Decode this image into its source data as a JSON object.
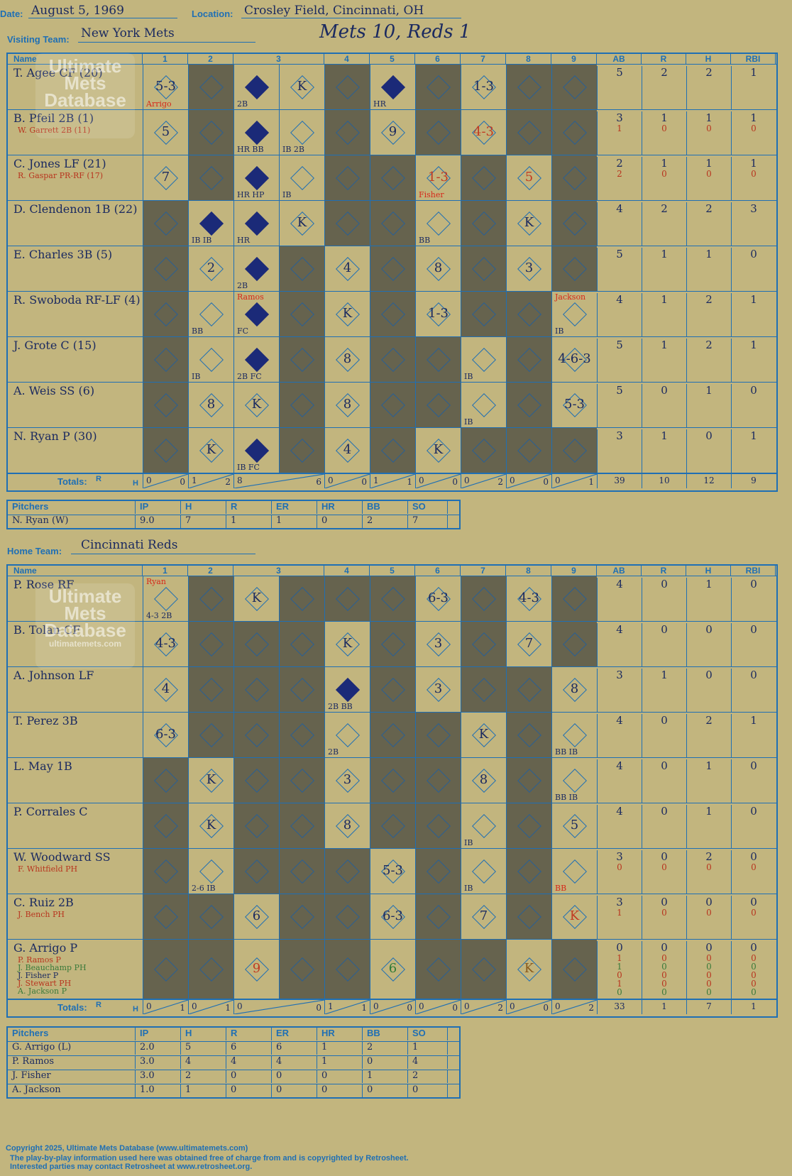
{
  "header": {
    "date_label": "Date:",
    "date": "August 5, 1969",
    "location_label": "Location:",
    "location": "Crosley Field, Cincinnati, OH",
    "visiting_label": "Visiting Team:",
    "visiting_team": "New York Mets",
    "home_label": "Home Team:",
    "home_team": "Cincinnati Reds",
    "result": "Mets 10, Reds 1"
  },
  "watermark": {
    "line1": "Ultimate",
    "line2": "Mets",
    "line3": "Database",
    "url": "ultimatemets.com"
  },
  "columns": {
    "name": "Name",
    "innings": [
      "1",
      "2",
      "3",
      "4",
      "5",
      "6",
      "7",
      "8",
      "9"
    ],
    "stats": [
      "AB",
      "R",
      "H",
      "RBI"
    ],
    "totals_label": "Totals:",
    "r_label": "R",
    "h_label": "H"
  },
  "visitors": {
    "batters": [
      {
        "name": "T. Agee CF (20)",
        "subs": [],
        "stats": [
          "5",
          "2",
          "2",
          "1"
        ],
        "sub_stats": [],
        "cells": [
          {
            "p": "5-3",
            "n": "Arrigo",
            "nc": "red"
          },
          {
            "d": 1
          },
          {
            "run": 1,
            "n": "2B"
          },
          {
            "p": "K"
          },
          {
            "d": 1
          },
          {
            "run": 1,
            "n": "HR"
          },
          {
            "d": 1
          },
          {
            "p": "1-3"
          },
          {
            "d": 1
          },
          {
            "d": 1
          }
        ]
      },
      {
        "name": "B. Pfeil 2B (1)",
        "subs": [
          {
            "t": "W. Garrett 2B (11)",
            "c": "r"
          }
        ],
        "stats": [
          "3",
          "1",
          "1",
          "1"
        ],
        "sub_stats": [
          [
            "1",
            "0",
            "0",
            "0"
          ]
        ],
        "cells": [
          {
            "p": "5"
          },
          {
            "d": 1
          },
          {
            "run": 1,
            "n": "HR BB"
          },
          {
            "p": "",
            "n": "IB 2B"
          },
          {
            "d": 1
          },
          {
            "p": "9"
          },
          {
            "d": 1
          },
          {
            "p": "4-3",
            "pc": "red"
          },
          {
            "d": 1
          },
          {
            "d": 1
          }
        ]
      },
      {
        "name": "C. Jones LF (21)",
        "subs": [
          {
            "t": "R. Gaspar PR-RF (17)",
            "c": "r"
          }
        ],
        "stats": [
          "2",
          "1",
          "1",
          "1"
        ],
        "sub_stats": [
          [
            "2",
            "0",
            "0",
            "0"
          ]
        ],
        "cells": [
          {
            "p": "7"
          },
          {
            "d": 1
          },
          {
            "run": 1,
            "n": "HR HP"
          },
          {
            "p": "",
            "n": "IB"
          },
          {
            "d": 1
          },
          {
            "d": 1
          },
          {
            "p": "1-3",
            "pc": "red",
            "n": "Fisher",
            "nc": "red"
          },
          {
            "d": 1
          },
          {
            "p": "5",
            "pc": "red"
          },
          {
            "d": 1
          }
        ]
      },
      {
        "name": "D. Clendenon 1B (22)",
        "subs": [],
        "stats": [
          "4",
          "2",
          "2",
          "3"
        ],
        "sub_stats": [],
        "cells": [
          {
            "d": 1
          },
          {
            "run": 1,
            "n": "IB IB"
          },
          {
            "run": 1,
            "n": "HR"
          },
          {
            "p": "K"
          },
          {
            "d": 1
          },
          {
            "d": 1
          },
          {
            "p": "",
            "n": "BB"
          },
          {
            "d": 1
          },
          {
            "p": "K"
          },
          {
            "d": 1
          }
        ]
      },
      {
        "name": "E. Charles 3B (5)",
        "subs": [],
        "stats": [
          "5",
          "1",
          "1",
          "0"
        ],
        "sub_stats": [],
        "cells": [
          {
            "d": 1
          },
          {
            "p": "2"
          },
          {
            "run": 1,
            "n": "2B"
          },
          {
            "d": 1
          },
          {
            "p": "4"
          },
          {
            "d": 1
          },
          {
            "p": "8"
          },
          {
            "d": 1
          },
          {
            "p": "3"
          },
          {
            "d": 1
          }
        ]
      },
      {
        "name": "R. Swoboda RF-LF (4)",
        "subs": [],
        "stats": [
          "4",
          "1",
          "2",
          "1"
        ],
        "sub_stats": [],
        "cells": [
          {
            "d": 1
          },
          {
            "p": "",
            "n": "BB"
          },
          {
            "run": 1,
            "n": "FC",
            "n2": "Ramos",
            "nc": "red"
          },
          {
            "d": 1
          },
          {
            "p": "K"
          },
          {
            "d": 1
          },
          {
            "p": "1-3"
          },
          {
            "d": 1
          },
          {
            "d": 1
          },
          {
            "p": "",
            "n": "IB",
            "n2": "Jackson",
            "nc": "red"
          }
        ]
      },
      {
        "name": "J. Grote C (15)",
        "subs": [],
        "stats": [
          "5",
          "1",
          "2",
          "1"
        ],
        "sub_stats": [],
        "cells": [
          {
            "d": 1
          },
          {
            "p": "",
            "n": "IB"
          },
          {
            "run": 1,
            "n": "2B FC"
          },
          {
            "d": 1
          },
          {
            "p": "8"
          },
          {
            "d": 1
          },
          {
            "d": 1
          },
          {
            "p": "",
            "n": "IB"
          },
          {
            "d": 1
          },
          {
            "p": "4-6-3"
          }
        ]
      },
      {
        "name": "A. Weis SS (6)",
        "subs": [],
        "stats": [
          "5",
          "0",
          "1",
          "0"
        ],
        "sub_stats": [],
        "cells": [
          {
            "d": 1
          },
          {
            "p": "8"
          },
          {
            "p": "K"
          },
          {
            "d": 1
          },
          {
            "p": "8"
          },
          {
            "d": 1
          },
          {
            "d": 1
          },
          {
            "p": "",
            "n": "IB"
          },
          {
            "d": 1
          },
          {
            "p": "5-3"
          }
        ]
      },
      {
        "name": "N. Ryan P (30)",
        "subs": [],
        "stats": [
          "3",
          "1",
          "0",
          "1"
        ],
        "sub_stats": [],
        "cells": [
          {
            "d": 1
          },
          {
            "p": "K"
          },
          {
            "run": 1,
            "n": "IB FC"
          },
          {
            "d": 1
          },
          {
            "p": "4"
          },
          {
            "d": 1
          },
          {
            "p": "K"
          },
          {
            "d": 1
          },
          {
            "d": 1
          },
          {
            "d": 1
          }
        ]
      }
    ],
    "totals": [
      [
        "0",
        "0"
      ],
      [
        "1",
        "2"
      ],
      [
        "8",
        "6"
      ],
      [
        "0",
        "0"
      ],
      [
        "1",
        "1"
      ],
      [
        "0",
        "0"
      ],
      [
        "0",
        "2"
      ],
      [
        "0",
        "0"
      ],
      [
        "0",
        "1"
      ]
    ],
    "totals_stats": [
      "39",
      "10",
      "12",
      "9"
    ]
  },
  "visitor_pitchers": {
    "headers": [
      "Pitchers",
      "IP",
      "H",
      "R",
      "ER",
      "HR",
      "BB",
      "SO"
    ],
    "rows": [
      [
        "N. Ryan (W)",
        "9.0",
        "7",
        "1",
        "1",
        "0",
        "2",
        "7"
      ]
    ]
  },
  "home": {
    "batters": [
      {
        "name": "P. Rose RF",
        "subs": [],
        "stats": [
          "4",
          "0",
          "1",
          "0"
        ],
        "sub_stats": [],
        "cells": [
          {
            "p": "",
            "n": "4-3 2B",
            "n2": "Ryan",
            "nc": "red"
          },
          {
            "d": 1
          },
          {
            "p": "K"
          },
          {
            "d": 1
          },
          {
            "d": 1
          },
          {
            "d": 1
          },
          {
            "p": "6-3"
          },
          {
            "d": 1
          },
          {
            "p": "4-3"
          },
          {
            "d": 1
          }
        ]
      },
      {
        "name": "B. Tolan CF",
        "subs": [],
        "stats": [
          "4",
          "0",
          "0",
          "0"
        ],
        "sub_stats": [],
        "cells": [
          {
            "p": "4-3"
          },
          {
            "d": 1
          },
          {
            "d": 1
          },
          {
            "d": 1
          },
          {
            "p": "K"
          },
          {
            "d": 1
          },
          {
            "p": "3"
          },
          {
            "d": 1
          },
          {
            "p": "7"
          },
          {
            "d": 1
          }
        ]
      },
      {
        "name": "A. Johnson LF",
        "subs": [],
        "stats": [
          "3",
          "1",
          "0",
          "0"
        ],
        "sub_stats": [],
        "cells": [
          {
            "p": "4"
          },
          {
            "d": 1
          },
          {
            "d": 1
          },
          {
            "d": 1
          },
          {
            "run": 1,
            "n": "2B BB"
          },
          {
            "d": 1
          },
          {
            "p": "3"
          },
          {
            "d": 1
          },
          {
            "d": 1
          },
          {
            "p": "8"
          }
        ]
      },
      {
        "name": "T. Perez 3B",
        "subs": [],
        "stats": [
          "4",
          "0",
          "2",
          "1"
        ],
        "sub_stats": [],
        "cells": [
          {
            "p": "6-3"
          },
          {
            "d": 1
          },
          {
            "d": 1
          },
          {
            "d": 1
          },
          {
            "p": "",
            "n": "2B"
          },
          {
            "d": 1
          },
          {
            "d": 1
          },
          {
            "p": "K"
          },
          {
            "d": 1
          },
          {
            "p": "",
            "n": "BB IB"
          }
        ]
      },
      {
        "name": "L. May 1B",
        "subs": [],
        "stats": [
          "4",
          "0",
          "1",
          "0"
        ],
        "sub_stats": [],
        "cells": [
          {
            "d": 1
          },
          {
            "p": "K"
          },
          {
            "d": 1
          },
          {
            "d": 1
          },
          {
            "p": "3"
          },
          {
            "d": 1
          },
          {
            "d": 1
          },
          {
            "p": "8"
          },
          {
            "d": 1
          },
          {
            "p": "",
            "n": "BB IB"
          }
        ]
      },
      {
        "name": "P. Corrales C",
        "subs": [],
        "stats": [
          "4",
          "0",
          "1",
          "0"
        ],
        "sub_stats": [],
        "cells": [
          {
            "d": 1
          },
          {
            "p": "K"
          },
          {
            "d": 1
          },
          {
            "d": 1
          },
          {
            "p": "8"
          },
          {
            "d": 1
          },
          {
            "d": 1
          },
          {
            "p": "",
            "n": "IB"
          },
          {
            "d": 1
          },
          {
            "p": "5"
          }
        ]
      },
      {
        "name": "W. Woodward SS",
        "subs": [
          {
            "t": "F. Whitfield PH",
            "c": "r"
          }
        ],
        "stats": [
          "3",
          "0",
          "2",
          "0"
        ],
        "sub_stats": [
          [
            "0",
            "0",
            "0",
            "0"
          ]
        ],
        "cells": [
          {
            "d": 1
          },
          {
            "p": "",
            "n": "2-6 IB"
          },
          {
            "d": 1
          },
          {
            "d": 1
          },
          {
            "d": 1
          },
          {
            "p": "5-3"
          },
          {
            "d": 1
          },
          {
            "p": "",
            "n": "IB"
          },
          {
            "d": 1
          },
          {
            "p": "",
            "n": "BB",
            "nc": "red"
          }
        ]
      },
      {
        "name": "C. Ruiz 2B",
        "subs": [
          {
            "t": "J. Bench PH",
            "c": "r"
          }
        ],
        "stats": [
          "3",
          "0",
          "0",
          "0"
        ],
        "sub_stats": [
          [
            "1",
            "0",
            "0",
            "0"
          ]
        ],
        "cells": [
          {
            "d": 1
          },
          {
            "d": 1
          },
          {
            "p": "6"
          },
          {
            "d": 1
          },
          {
            "d": 1
          },
          {
            "p": "6-3"
          },
          {
            "d": 1
          },
          {
            "p": "7"
          },
          {
            "d": 1
          },
          {
            "p": "K",
            "pc": "red"
          }
        ]
      },
      {
        "name": "G. Arrigo P",
        "subs": [
          {
            "t": "P. Ramos P",
            "c": "r"
          },
          {
            "t": "J. Beauchamp PH",
            "c": "g"
          },
          {
            "t": "J. Fisher P",
            "c": "k"
          },
          {
            "t": "J. Stewart PH",
            "c": "r"
          },
          {
            "t": "A. Jackson P",
            "c": "g"
          }
        ],
        "stats": [
          "0",
          "0",
          "0",
          "0"
        ],
        "sub_stats": [
          [
            "1",
            "0",
            "0",
            "0"
          ],
          [
            "1",
            "0",
            "0",
            "0"
          ],
          [
            "0",
            "0",
            "0",
            "0"
          ],
          [
            "1",
            "0",
            "0",
            "0"
          ],
          [
            "0",
            "0",
            "0",
            "0"
          ]
        ],
        "cells": [
          {
            "d": 1
          },
          {
            "d": 1
          },
          {
            "p": "9",
            "pc": "red"
          },
          {
            "d": 1
          },
          {
            "d": 1
          },
          {
            "p": "6",
            "pc": "grn"
          },
          {
            "d": 1
          },
          {
            "d": 1
          },
          {
            "p": "K",
            "pc": "brn"
          },
          {
            "d": 1
          }
        ]
      }
    ],
    "totals": [
      [
        "0",
        "1"
      ],
      [
        "0",
        "1"
      ],
      [
        "0",
        "0"
      ],
      [
        "1",
        "1"
      ],
      [
        "0",
        "0"
      ],
      [
        "0",
        "0"
      ],
      [
        "0",
        "2"
      ],
      [
        "0",
        "0"
      ],
      [
        "0",
        "2"
      ]
    ],
    "totals_stats": [
      "33",
      "1",
      "7",
      "1"
    ]
  },
  "home_pitchers": {
    "headers": [
      "Pitchers",
      "IP",
      "H",
      "R",
      "ER",
      "HR",
      "BB",
      "SO"
    ],
    "rows": [
      [
        "G. Arrigo (L)",
        "2.0",
        "5",
        "6",
        "6",
        "1",
        "2",
        "1"
      ],
      [
        "P. Ramos",
        "3.0",
        "4",
        "4",
        "4",
        "1",
        "0",
        "4"
      ],
      [
        "J. Fisher",
        "3.0",
        "2",
        "0",
        "0",
        "0",
        "1",
        "2"
      ],
      [
        "A. Jackson",
        "1.0",
        "1",
        "0",
        "0",
        "0",
        "0",
        "0"
      ]
    ]
  },
  "footer": {
    "line1": "Copyright 2025, Ultimate Mets Database (www.ultimatemets.com)",
    "line2": "The play-by-play information used here was obtained free of charge from and is copyrighted by Retrosheet.",
    "line3": "Interested parties may contact Retrosheet at www.retrosheet.org."
  }
}
